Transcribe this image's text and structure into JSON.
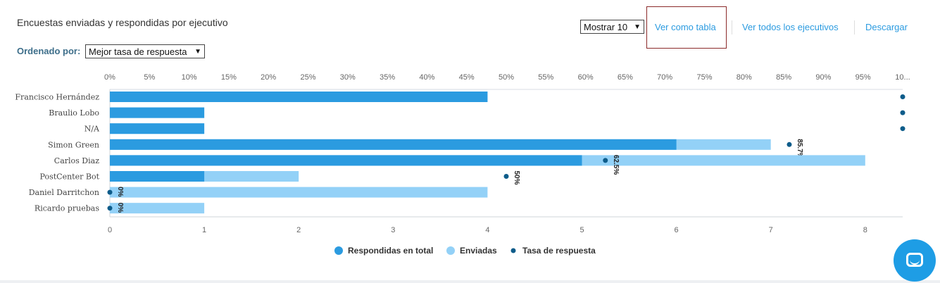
{
  "header": {
    "title": "Encuestas enviadas y respondidas por ejecutivo",
    "sort_label": "Ordenado por:",
    "sort_value": "Mejor tasa de respuesta",
    "show_value": "Mostrar 10",
    "links": [
      "Ver como tabla",
      "Ver todos los ejecutivos",
      "Descargar"
    ]
  },
  "colors": {
    "responded": "#2b9be0",
    "sent": "#93d1f7",
    "rate": "#0d5c8a",
    "link": "#2b9be0"
  },
  "chart_data": {
    "type": "bar",
    "orientation": "horizontal",
    "categories": [
      "Francisco Hernández",
      "Braulio Lobo",
      "N/A",
      "Simon Green",
      "Carlos Diaz",
      "PostCenter Bot",
      "Daniel Darritchon",
      "Ricardo pruebas"
    ],
    "series": [
      {
        "name": "Respondidas en total",
        "type": "bar",
        "values": [
          4,
          1,
          1,
          6,
          5,
          1,
          0,
          0
        ]
      },
      {
        "name": "Enviadas",
        "type": "bar",
        "values": [
          4,
          1,
          1,
          7,
          8,
          2,
          4,
          1
        ]
      },
      {
        "name": "Tasa de respuesta",
        "type": "scatter",
        "values": [
          100,
          100,
          100,
          85.7,
          62.5,
          50,
          0,
          0
        ]
      }
    ],
    "rate_labels": [
      "",
      "",
      "",
      "85.7%",
      "62.5%",
      "50%",
      "0%",
      "0%"
    ],
    "x_bottom": {
      "ticks": [
        "0",
        "1",
        "2",
        "3",
        "4",
        "5",
        "6",
        "7",
        "8"
      ],
      "range": [
        0,
        8.42
      ]
    },
    "x_top": {
      "ticks": [
        "0%",
        "5%",
        "10%",
        "15%",
        "20%",
        "25%",
        "30%",
        "35%",
        "40%",
        "45%",
        "50%",
        "55%",
        "60%",
        "65%",
        "70%",
        "75%",
        "80%",
        "85%",
        "90%",
        "95%",
        "10..."
      ],
      "range": [
        0,
        100
      ]
    },
    "legend": [
      "Respondidas en total",
      "Enviadas",
      "Tasa de respuesta"
    ],
    "legend_position": "bottom"
  }
}
